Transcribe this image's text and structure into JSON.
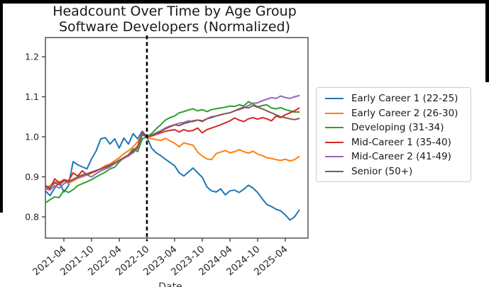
{
  "title": {
    "line1": "Headcount Over Time by Age Group",
    "line2": "Software Developers (Normalized)"
  },
  "colors": {
    "background": "#ffffff",
    "letterbox": "#000000",
    "axis": "#3a3a3a",
    "tick_text": "#262626"
  },
  "chart_data": {
    "type": "line",
    "title": "Headcount Over Time by Age Group",
    "subtitle": "Software Developers (Normalized)",
    "xlabel": "Date",
    "ylabel": "",
    "grid": false,
    "legend_position": "right-of-axes",
    "ylim": [
      0.747,
      1.248
    ],
    "y_ticks": [
      0.8,
      0.9,
      1.0,
      1.1,
      1.2
    ],
    "x_tick_labels": [
      "2021-04",
      "2021-10",
      "2022-04",
      "2022-10",
      "2023-04",
      "2023-10",
      "2024-04",
      "2024-10",
      "2025-04"
    ],
    "event_line": {
      "month": "2022-10",
      "style": "dashed",
      "color": "#000000",
      "note": "normalization point, all series = 1.0"
    },
    "x_months": [
      "2020-12",
      "2021-01",
      "2021-02",
      "2021-03",
      "2021-04",
      "2021-05",
      "2021-06",
      "2021-07",
      "2021-08",
      "2021-09",
      "2021-10",
      "2021-11",
      "2021-12",
      "2022-01",
      "2022-02",
      "2022-03",
      "2022-04",
      "2022-05",
      "2022-06",
      "2022-07",
      "2022-08",
      "2022-09",
      "2022-10",
      "2022-11",
      "2022-12",
      "2023-01",
      "2023-02",
      "2023-03",
      "2023-04",
      "2023-05",
      "2023-06",
      "2023-07",
      "2023-08",
      "2023-09",
      "2023-10",
      "2023-11",
      "2023-12",
      "2024-01",
      "2024-02",
      "2024-03",
      "2024-04",
      "2024-05",
      "2024-06",
      "2024-07",
      "2024-08",
      "2024-09",
      "2024-10",
      "2024-11",
      "2024-12",
      "2025-01",
      "2025-02",
      "2025-03",
      "2025-04",
      "2025-05",
      "2025-06",
      "2025-07"
    ],
    "series": [
      {
        "name": "Early Career 1 (22-25)",
        "slug": "early-career-1",
        "color": "#1f77b4",
        "values": [
          0.865,
          0.853,
          0.872,
          0.888,
          0.862,
          0.878,
          0.938,
          0.93,
          0.925,
          0.92,
          0.945,
          0.965,
          0.995,
          0.998,
          0.982,
          0.995,
          0.972,
          0.997,
          0.982,
          1.008,
          0.995,
          1.014,
          1.0,
          0.972,
          0.96,
          0.953,
          0.944,
          0.936,
          0.928,
          0.91,
          0.902,
          0.912,
          0.922,
          0.91,
          0.899,
          0.875,
          0.865,
          0.862,
          0.87,
          0.855,
          0.865,
          0.867,
          0.861,
          0.869,
          0.879,
          0.872,
          0.861,
          0.845,
          0.831,
          0.826,
          0.819,
          0.815,
          0.805,
          0.792,
          0.8,
          0.817
        ]
      },
      {
        "name": "Early Career 2 (26-30)",
        "slug": "early-career-2",
        "color": "#ff7f0e",
        "values": [
          0.873,
          0.878,
          0.888,
          0.884,
          0.892,
          0.884,
          0.89,
          0.896,
          0.9,
          0.905,
          0.91,
          0.914,
          0.921,
          0.928,
          0.932,
          0.94,
          0.948,
          0.958,
          0.965,
          0.975,
          0.988,
          1.005,
          1.0,
          0.995,
          0.993,
          0.991,
          0.996,
          0.99,
          0.984,
          0.975,
          0.985,
          0.982,
          0.979,
          0.962,
          0.952,
          0.945,
          0.943,
          0.958,
          0.962,
          0.966,
          0.96,
          0.963,
          0.968,
          0.963,
          0.959,
          0.964,
          0.957,
          0.953,
          0.948,
          0.946,
          0.943,
          0.941,
          0.944,
          0.94,
          0.943,
          0.951
        ]
      },
      {
        "name": "Developing (31-34)",
        "slug": "developing",
        "color": "#2ca02c",
        "values": [
          0.835,
          0.843,
          0.85,
          0.848,
          0.867,
          0.861,
          0.868,
          0.878,
          0.883,
          0.888,
          0.893,
          0.9,
          0.906,
          0.912,
          0.92,
          0.924,
          0.937,
          0.948,
          0.955,
          0.97,
          0.963,
          0.995,
          1.0,
          1.008,
          1.02,
          1.03,
          1.042,
          1.048,
          1.052,
          1.06,
          1.063,
          1.067,
          1.07,
          1.065,
          1.068,
          1.063,
          1.068,
          1.07,
          1.072,
          1.074,
          1.077,
          1.076,
          1.08,
          1.077,
          1.088,
          1.082,
          1.075,
          1.078,
          1.08,
          1.072,
          1.07,
          1.073,
          1.068,
          1.065,
          1.062,
          1.062
        ]
      },
      {
        "name": "Mid-Career 1 (35-40)",
        "slug": "mid-career-1",
        "color": "#d62728",
        "values": [
          0.875,
          0.87,
          0.895,
          0.885,
          0.893,
          0.89,
          0.91,
          0.902,
          0.915,
          0.905,
          0.91,
          0.915,
          0.92,
          0.924,
          0.928,
          0.935,
          0.94,
          0.948,
          0.952,
          0.965,
          0.977,
          1.01,
          1.0,
          1.002,
          1.006,
          1.01,
          1.014,
          1.016,
          1.018,
          1.012,
          1.018,
          1.014,
          1.016,
          1.022,
          1.01,
          1.018,
          1.022,
          1.026,
          1.03,
          1.035,
          1.04,
          1.047,
          1.042,
          1.038,
          1.045,
          1.048,
          1.044,
          1.048,
          1.045,
          1.04,
          1.052,
          1.048,
          1.055,
          1.06,
          1.065,
          1.072
        ]
      },
      {
        "name": "Mid-Career 2 (41-49)",
        "slug": "mid-career-2",
        "color": "#9467bd",
        "values": [
          0.87,
          0.867,
          0.878,
          0.872,
          0.883,
          0.888,
          0.893,
          0.898,
          0.902,
          0.905,
          0.9,
          0.908,
          0.915,
          0.92,
          0.925,
          0.933,
          0.94,
          0.946,
          0.953,
          0.96,
          0.972,
          1.005,
          1.0,
          1.004,
          1.01,
          1.015,
          1.022,
          1.027,
          1.03,
          1.034,
          1.036,
          1.04,
          1.038,
          1.042,
          1.038,
          1.045,
          1.048,
          1.052,
          1.055,
          1.058,
          1.06,
          1.065,
          1.068,
          1.072,
          1.078,
          1.084,
          1.085,
          1.09,
          1.094,
          1.098,
          1.096,
          1.102,
          1.098,
          1.096,
          1.1,
          1.103
        ]
      },
      {
        "name": "Senior (50+)",
        "slug": "senior",
        "color": "#8c564b",
        "values": [
          0.878,
          0.873,
          0.885,
          0.88,
          0.89,
          0.887,
          0.894,
          0.9,
          0.905,
          0.908,
          0.912,
          0.916,
          0.92,
          0.925,
          0.93,
          0.935,
          0.942,
          0.948,
          0.955,
          0.963,
          0.975,
          1.008,
          1.0,
          1.003,
          1.008,
          1.014,
          1.02,
          1.025,
          1.03,
          1.028,
          1.033,
          1.036,
          1.04,
          1.042,
          1.04,
          1.045,
          1.05,
          1.052,
          1.055,
          1.058,
          1.06,
          1.065,
          1.07,
          1.074,
          1.072,
          1.078,
          1.074,
          1.07,
          1.065,
          1.06,
          1.055,
          1.05,
          1.048,
          1.045,
          1.043,
          1.046
        ]
      }
    ]
  }
}
